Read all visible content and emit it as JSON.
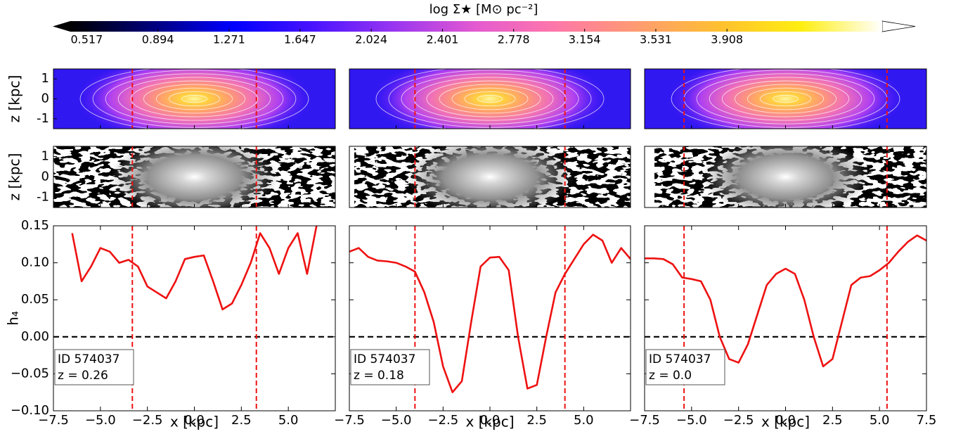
{
  "chart_data": [
    {
      "type": "colorbar",
      "label": "log Σ★ [M⊙ pc⁻²]",
      "lim": [
        0.43,
        4.73
      ],
      "ticks": [
        0.517,
        0.894,
        1.271,
        1.647,
        2.024,
        2.401,
        2.778,
        3.154,
        3.531,
        3.908
      ],
      "colors": [
        "#000000",
        "#00007a",
        "#0000ff",
        "#4a14ff",
        "#9a36f0",
        "#e45ad0",
        "#ff78a8",
        "#ff9c70",
        "#ffc030",
        "#ffee10",
        "#ffffff"
      ]
    },
    {
      "type": "line",
      "xlabel": "x [kpc]",
      "ylabel": "h₄",
      "map_ylabel": "z [kpc]",
      "map_ylim": [
        -1.5,
        1.5
      ],
      "map_yticks": [
        -1,
        0,
        1
      ],
      "annotation": [
        "ID 574037",
        "z = 0.26"
      ],
      "xlim": [
        -7.5,
        7.5
      ],
      "ylim": [
        -0.1,
        0.15
      ],
      "xticks": [
        {
          "value": -7.5,
          "label": "−7.5"
        },
        {
          "value": -5,
          "label": "−5.0"
        },
        {
          "value": -2.5,
          "label": "−2.5"
        },
        {
          "value": 0,
          "label": "0.0"
        },
        {
          "value": 2.5,
          "label": "2.5"
        },
        {
          "value": 5,
          "label": "5.0"
        }
      ],
      "yticks": [
        {
          "value": -0.1,
          "label": "−0.10"
        },
        {
          "value": -0.05,
          "label": "−0.05"
        },
        {
          "value": 0,
          "label": "0.00"
        },
        {
          "value": 0.05,
          "label": "0.05"
        },
        {
          "value": 0.1,
          "label": "0.10"
        },
        {
          "value": 0.15,
          "label": "0.15"
        }
      ],
      "color": "#ee1111",
      "vlines": [
        -3.3,
        3.3
      ],
      "hline": 0,
      "x": [
        -6.5,
        -6,
        -5.5,
        -5,
        -4.5,
        -4,
        -3.5,
        -3,
        -2.5,
        -2,
        -1.5,
        -1,
        -0.5,
        0,
        0.5,
        1,
        1.5,
        2,
        2.5,
        3,
        3.5,
        4,
        4.5,
        5,
        5.5,
        6,
        6.5
      ],
      "values": [
        0.14,
        0.075,
        0.095,
        0.12,
        0.115,
        0.1,
        0.104,
        0.095,
        0.068,
        0.06,
        0.052,
        0.075,
        0.105,
        0.108,
        0.11,
        0.075,
        0.037,
        0.045,
        0.07,
        0.1,
        0.14,
        0.12,
        0.085,
        0.12,
        0.14,
        0.085,
        0.15
      ]
    },
    {
      "type": "line",
      "xlabel": "x [kpc]",
      "map_ylim": [
        -1.5,
        1.5
      ],
      "annotation": [
        "ID 574037",
        "z = 0.18"
      ],
      "xlim": [
        -7.5,
        7.5
      ],
      "ylim": [
        -0.1,
        0.15
      ],
      "xticks": [
        {
          "value": -7.5,
          "label": "−7.5"
        },
        {
          "value": -5,
          "label": "−5.0"
        },
        {
          "value": -2.5,
          "label": "−2.5"
        },
        {
          "value": 0,
          "label": "0.0"
        },
        {
          "value": 2.5,
          "label": "2.5"
        },
        {
          "value": 5,
          "label": "5.0"
        }
      ],
      "yticks": [
        -0.1,
        -0.05,
        0,
        0.05,
        0.1,
        0.15
      ],
      "ytick_labels": false,
      "color": "#ee1111",
      "vlines": [
        -4,
        4
      ],
      "hline": 0,
      "x": [
        -7.5,
        -7,
        -6.5,
        -6,
        -5.5,
        -5,
        -4.5,
        -4,
        -3.5,
        -3,
        -2.5,
        -2,
        -1.5,
        -1,
        -0.5,
        0,
        0.5,
        1,
        1.5,
        2,
        2.5,
        3,
        3.5,
        4,
        4.5,
        5,
        5.5,
        6,
        6.5,
        7,
        7.5
      ],
      "values": [
        0.115,
        0.12,
        0.108,
        0.103,
        0.102,
        0.1,
        0.095,
        0.088,
        0.06,
        0.02,
        -0.04,
        -0.075,
        -0.06,
        0.02,
        0.095,
        0.107,
        0.108,
        0.09,
        0.0,
        -0.07,
        -0.065,
        0.0,
        0.06,
        0.085,
        0.105,
        0.125,
        0.138,
        0.13,
        0.1,
        0.12,
        0.105
      ]
    },
    {
      "type": "line",
      "xlabel": "x [kpc]",
      "map_ylim": [
        -1.5,
        1.5
      ],
      "annotation": [
        "ID 574037",
        "z = 0.0"
      ],
      "xlim": [
        -7.5,
        7.5
      ],
      "ylim": [
        -0.1,
        0.15
      ],
      "xticks": [
        {
          "value": -7.5,
          "label": "−7.5"
        },
        {
          "value": -5,
          "label": "−5.0"
        },
        {
          "value": -2.5,
          "label": "−2.5"
        },
        {
          "value": 0,
          "label": "0.0"
        },
        {
          "value": 2.5,
          "label": "2.5"
        },
        {
          "value": 5,
          "label": "5.0"
        },
        {
          "value": 7.5,
          "label": "7.5"
        }
      ],
      "yticks": [
        -0.1,
        -0.05,
        0,
        0.05,
        0.1,
        0.15
      ],
      "ytick_labels": false,
      "color": "#ee1111",
      "vlines": [
        -5.4,
        5.4
      ],
      "hline": 0,
      "x": [
        -7.5,
        -7,
        -6.5,
        -6,
        -5.5,
        -5,
        -4.5,
        -4,
        -3.5,
        -3,
        -2.5,
        -2,
        -1.5,
        -1,
        -0.5,
        0,
        0.5,
        1,
        1.5,
        2,
        2.5,
        3,
        3.5,
        4,
        4.5,
        5,
        5.5,
        6,
        6.5,
        7,
        7.5
      ],
      "values": [
        0.106,
        0.106,
        0.105,
        0.098,
        0.08,
        0.078,
        0.075,
        0.05,
        0.0,
        -0.03,
        -0.035,
        -0.01,
        0.03,
        0.07,
        0.085,
        0.092,
        0.085,
        0.05,
        0.0,
        -0.04,
        -0.03,
        0.02,
        0.07,
        0.08,
        0.082,
        0.09,
        0.1,
        0.115,
        0.128,
        0.137,
        0.13
      ]
    }
  ]
}
